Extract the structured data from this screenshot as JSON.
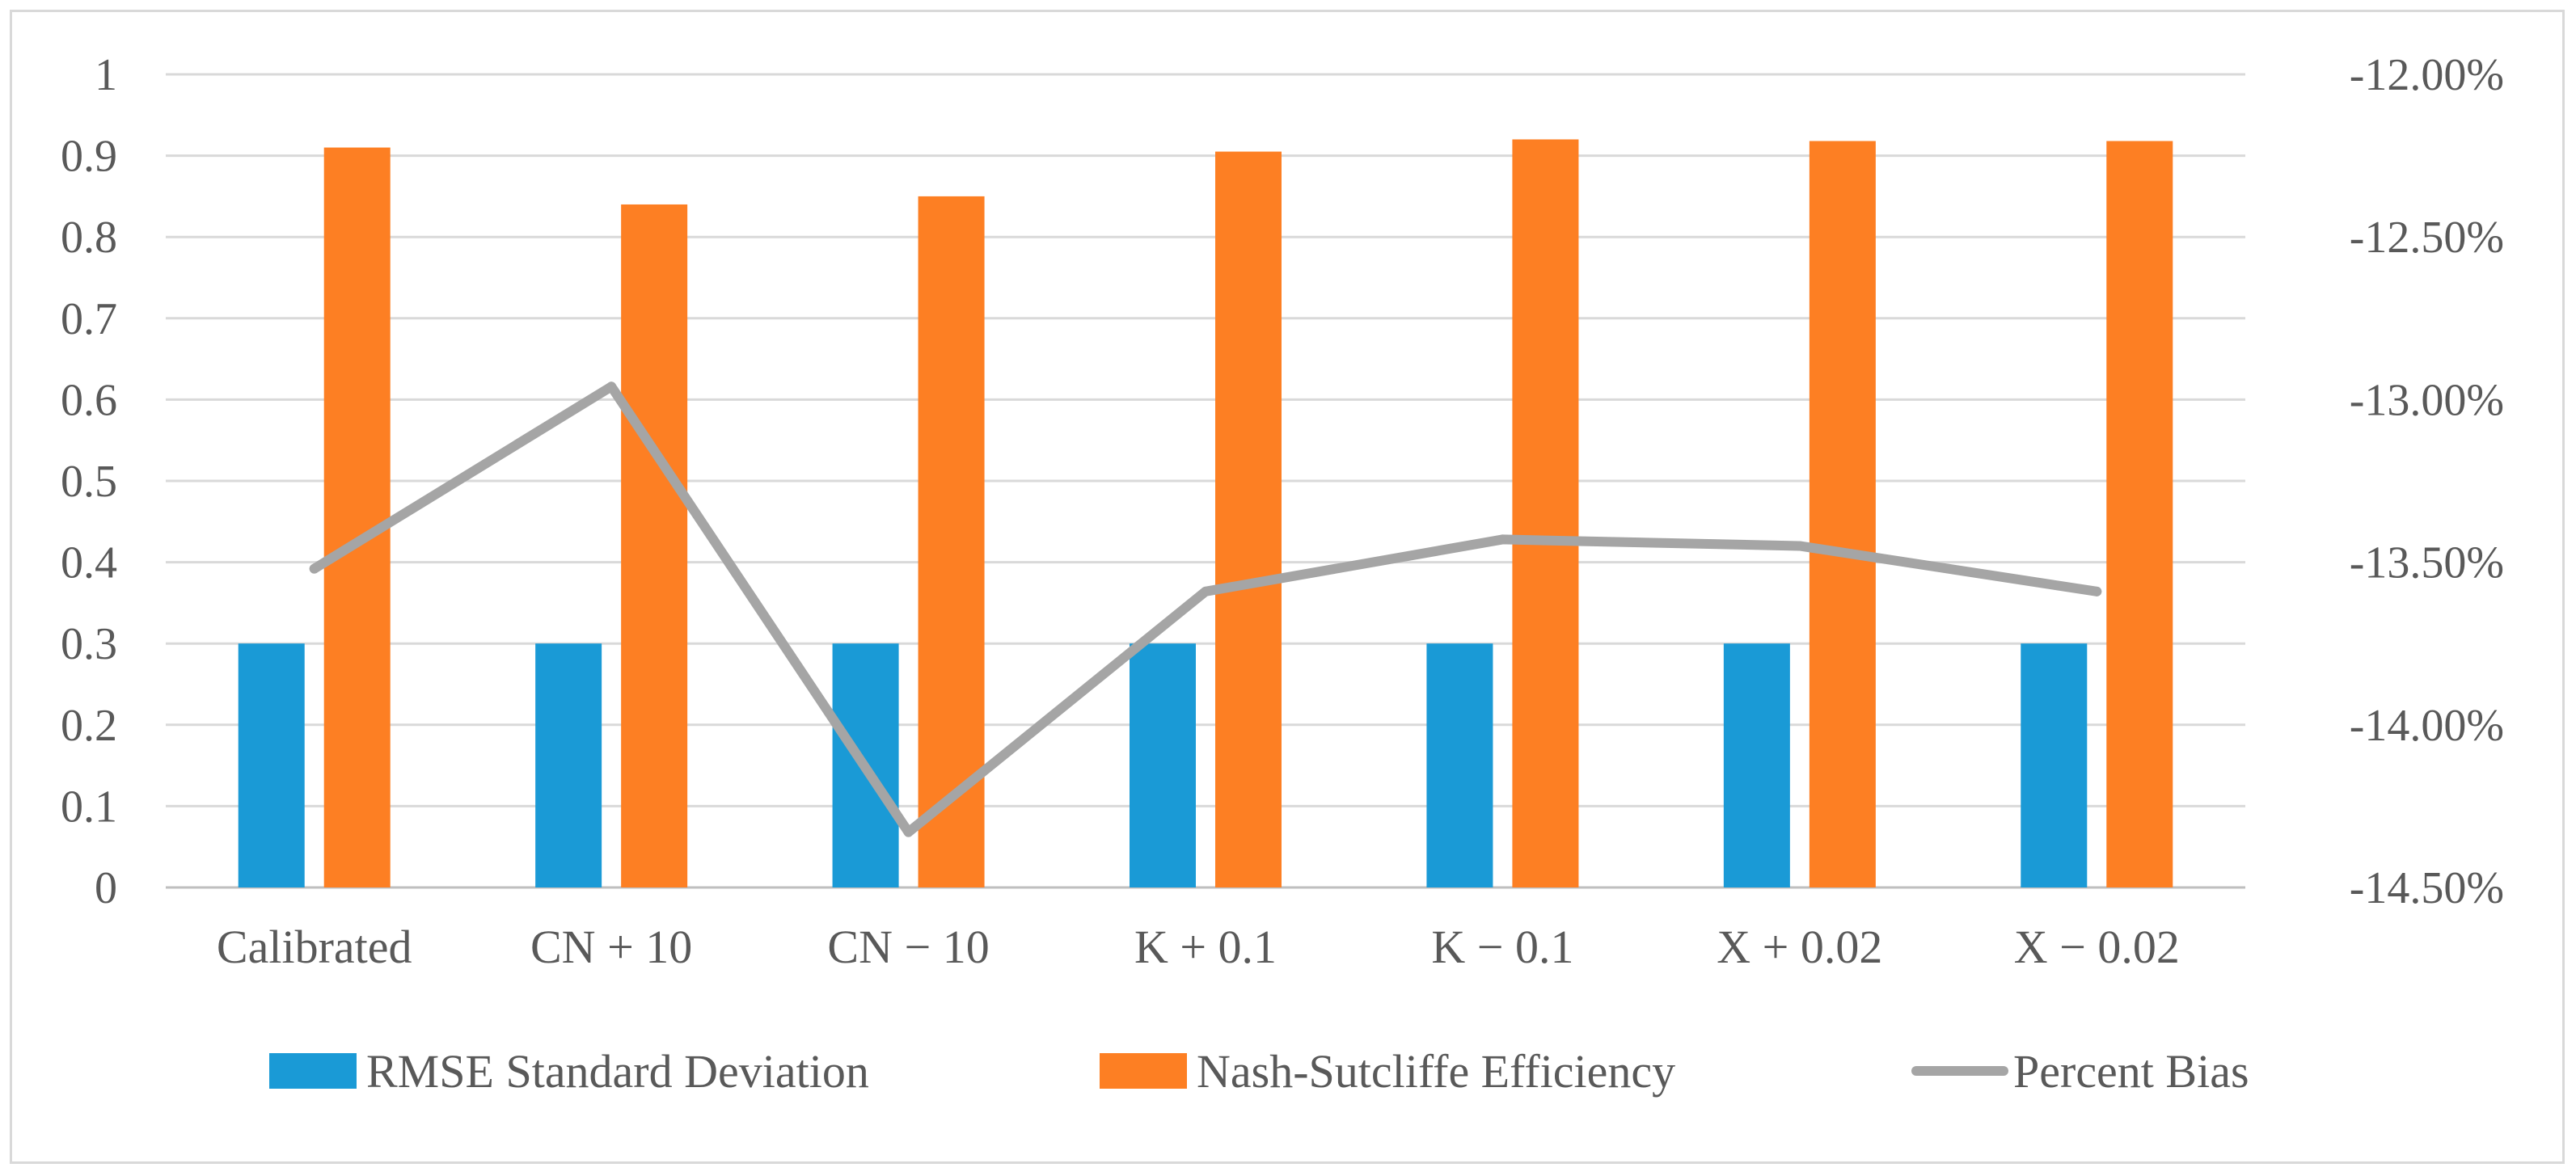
{
  "chart_data": {
    "type": "bar",
    "categories": [
      "Calibrated",
      "CN + 10",
      "CN − 10",
      "K + 0.1",
      "K − 0.1",
      "X + 0.02",
      "X − 0.02"
    ],
    "series": [
      {
        "name": "RMSE Standard Deviation",
        "type": "bar",
        "axis": "left",
        "color": "#1a9ad6",
        "values": [
          0.3,
          0.3,
          0.3,
          0.3,
          0.3,
          0.3,
          0.3
        ]
      },
      {
        "name": "Nash-Sutcliffe Efficiency",
        "type": "bar",
        "axis": "left",
        "color": "#fd7f23",
        "values": [
          0.91,
          0.84,
          0.85,
          0.905,
          0.92,
          0.918,
          0.918
        ]
      },
      {
        "name": "Percent Bias",
        "type": "line",
        "axis": "right",
        "color": "#a5a5a5",
        "values": [
          -13.52,
          -12.96,
          -14.33,
          -13.59,
          -13.43,
          -13.45,
          -13.59
        ]
      }
    ],
    "y_left": {
      "ylim": [
        0,
        1
      ],
      "ticks": [
        0,
        0.1,
        0.2,
        0.3,
        0.4,
        0.5,
        0.6,
        0.7,
        0.8,
        0.9,
        1
      ],
      "tick_labels": [
        "0",
        "0.1",
        "0.2",
        "0.3",
        "0.4",
        "0.5",
        "0.6",
        "0.7",
        "0.8",
        "0.9",
        "1"
      ]
    },
    "y_right": {
      "ylim": [
        -14.5,
        -12.0
      ],
      "ticks": [
        -14.5,
        -14.0,
        -13.5,
        -13.0,
        -12.5,
        -12.0
      ],
      "tick_labels": [
        "-14.50%",
        "-14.00%",
        "-13.50%",
        "-13.00%",
        "-12.50%",
        "-12.00%"
      ]
    },
    "grid": true,
    "legend_position": "bottom",
    "title": "",
    "xlabel": "",
    "ylabel": ""
  }
}
